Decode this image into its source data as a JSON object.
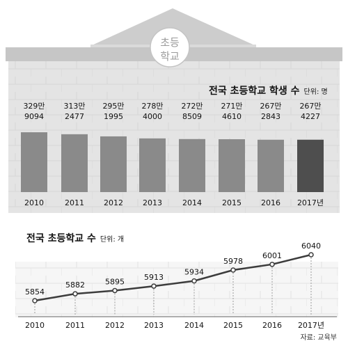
{
  "badge": {
    "line1": "초등",
    "line2": "학교"
  },
  "source": "자료: 교육부",
  "colors": {
    "wall": "#e4e4e4",
    "roof": "#d2d2d2",
    "bar": "#8a8a8a",
    "bar_highlight": "#4e4e4e",
    "line": "#3c3c3c",
    "panel": "#f6f6f6",
    "text": "#111111"
  },
  "chart_data": [
    {
      "type": "bar",
      "title": "전국 초등학교 학생 수",
      "unit": "단위: 명",
      "categories": [
        "2010",
        "2011",
        "2012",
        "2013",
        "2014",
        "2015",
        "2016",
        "2017년"
      ],
      "values": [
        3299094,
        3132477,
        2951995,
        2784000,
        2728509,
        2714610,
        2672843,
        2674227
      ],
      "labels": [
        [
          "329만",
          "9094"
        ],
        [
          "313만",
          "2477"
        ],
        [
          "295만",
          "1995"
        ],
        [
          "278만",
          "4000"
        ],
        [
          "272만",
          "8509"
        ],
        [
          "271만",
          "4610"
        ],
        [
          "267만",
          "2843"
        ],
        [
          "267만",
          "4227"
        ]
      ],
      "highlight_index": 7
    },
    {
      "type": "line",
      "title": "전국 초등학교 수",
      "unit": "단위: 개",
      "categories": [
        "2010",
        "2011",
        "2012",
        "2013",
        "2014",
        "2015",
        "2016",
        "2017년"
      ],
      "values": [
        5854,
        5882,
        5895,
        5913,
        5934,
        5978,
        6001,
        6040
      ]
    }
  ]
}
